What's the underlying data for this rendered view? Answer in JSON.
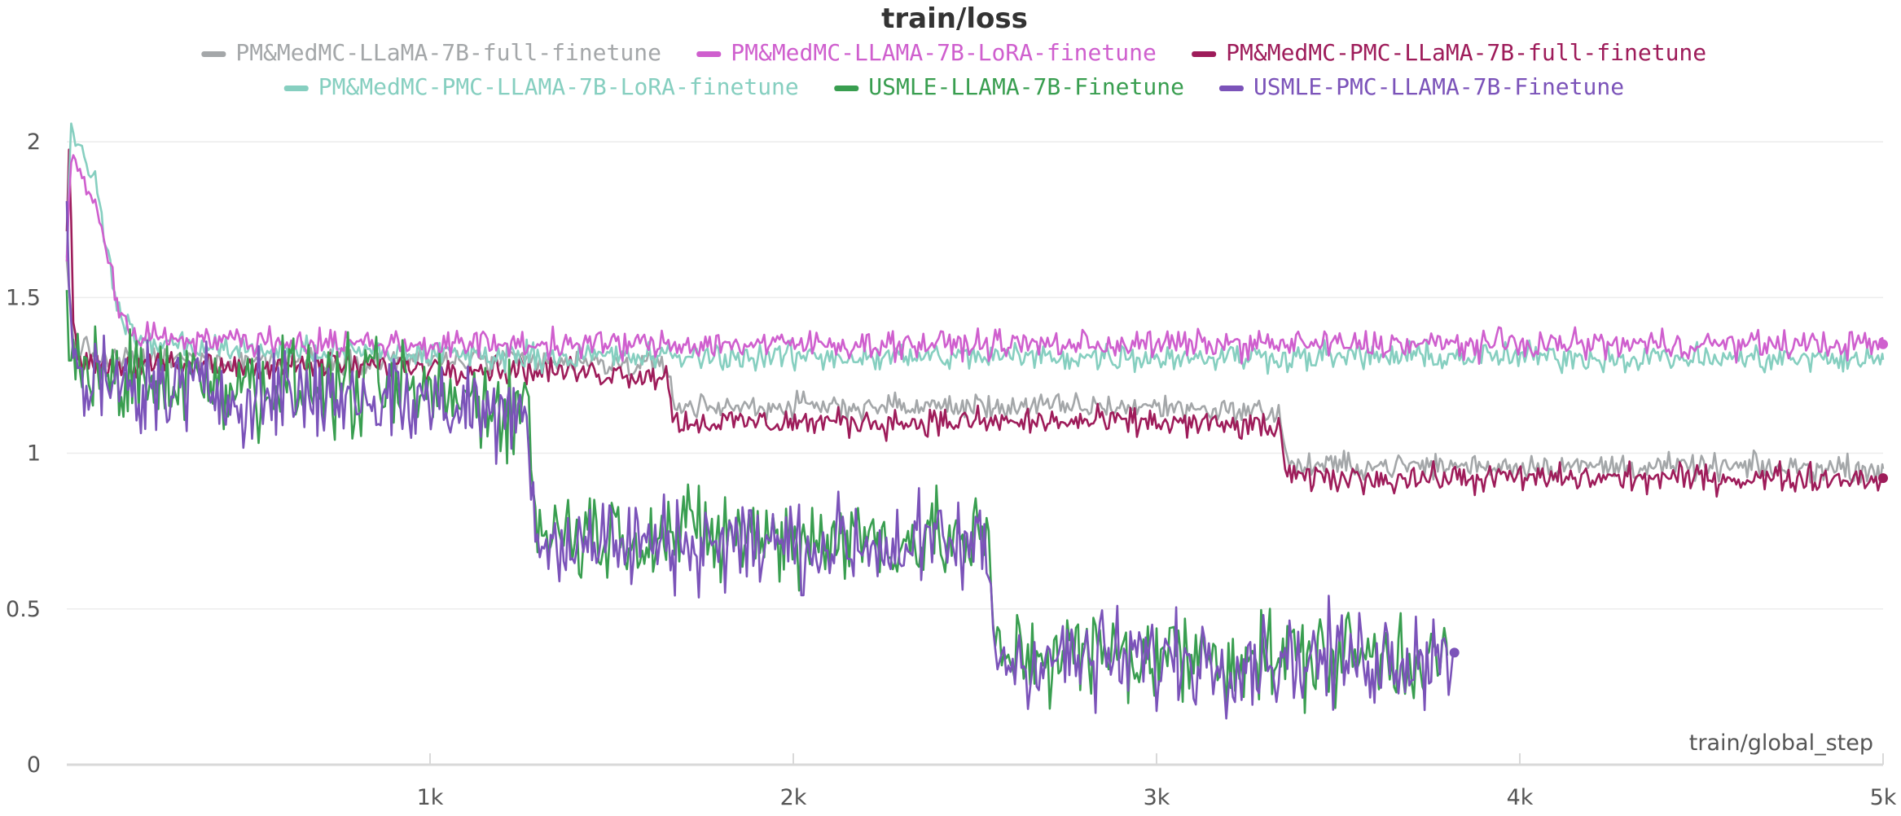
{
  "chart_data": {
    "type": "line",
    "title": "train/loss",
    "xlabel": "train/global_step",
    "ylabel": "",
    "xlim": [
      0,
      5000
    ],
    "ylim": [
      0,
      2.05
    ],
    "x_ticks": [
      1000,
      2000,
      3000,
      4000,
      5000
    ],
    "x_tick_labels": [
      "1k",
      "2k",
      "3k",
      "4k",
      "5k"
    ],
    "y_ticks": [
      0,
      0.5,
      1,
      1.5,
      2
    ],
    "y_tick_labels": [
      "0",
      "0.5",
      "1",
      "1.5",
      "2"
    ],
    "grid": true,
    "legend_position": "top",
    "series": [
      {
        "name": "PM&MedMC-LLaMA-7B-full-finetune",
        "color": "#a4a7a9",
        "end_marker": false,
        "x": [
          0,
          20,
          50,
          100,
          300,
          1000,
          1660,
          1670,
          2000,
          3000,
          3340,
          3360,
          4000,
          5000
        ],
        "y": [
          1.6,
          1.35,
          1.33,
          1.3,
          1.3,
          1.3,
          1.28,
          1.15,
          1.15,
          1.15,
          1.13,
          0.96,
          0.96,
          0.95
        ],
        "noise": 0.02
      },
      {
        "name": "PM&MedMC-LLAMA-7B-LoRA-finetune",
        "color": "#cf5fce",
        "end_marker": true,
        "x": [
          0,
          10,
          40,
          80,
          120,
          150,
          200,
          500,
          1000,
          1500,
          2000,
          3000,
          4000,
          5000
        ],
        "y": [
          1.6,
          1.95,
          1.9,
          1.8,
          1.6,
          1.42,
          1.38,
          1.36,
          1.35,
          1.35,
          1.35,
          1.35,
          1.35,
          1.35
        ],
        "noise": 0.022
      },
      {
        "name": "PM&MedMC-PMC-LLaMA-7B-full-finetune",
        "color": "#9e1c5a",
        "end_marker": true,
        "x": [
          0,
          5,
          20,
          40,
          100,
          300,
          1000,
          1650,
          1660,
          1670,
          2000,
          3000,
          3340,
          3360,
          4000,
          5000
        ],
        "y": [
          1.7,
          2.0,
          1.35,
          1.3,
          1.28,
          1.28,
          1.28,
          1.25,
          1.2,
          1.1,
          1.1,
          1.1,
          1.08,
          0.92,
          0.92,
          0.92
        ],
        "noise": 0.022
      },
      {
        "name": "PM&MedMC-PMC-LLAMA-7B-LoRA-finetune",
        "color": "#86cfc0",
        "end_marker": false,
        "x": [
          0,
          10,
          40,
          80,
          120,
          150,
          200,
          500,
          1000,
          1500,
          2000,
          3000,
          4000,
          5000
        ],
        "y": [
          1.6,
          2.04,
          2.0,
          1.85,
          1.6,
          1.42,
          1.36,
          1.33,
          1.32,
          1.31,
          1.31,
          1.31,
          1.31,
          1.3
        ],
        "noise": 0.022
      },
      {
        "name": "USMLE-LLAMA-7B-Finetune",
        "color": "#399e50",
        "end_marker": false,
        "x": [
          0,
          15,
          40,
          300,
          900,
          1270,
          1280,
          1300,
          2000,
          2530,
          2545,
          2560,
          3000,
          3500,
          3800
        ],
        "y": [
          1.45,
          1.3,
          1.25,
          1.24,
          1.2,
          1.15,
          0.95,
          0.75,
          0.73,
          0.72,
          0.55,
          0.36,
          0.35,
          0.35,
          0.35
        ],
        "noise": 0.075
      },
      {
        "name": "USMLE-PMC-LLAMA-7B-Finetune",
        "color": "#7b53b9",
        "end_marker": true,
        "x": [
          0,
          15,
          40,
          300,
          900,
          1270,
          1280,
          1300,
          2000,
          2530,
          2545,
          2560,
          3000,
          3500,
          3820
        ],
        "y": [
          1.8,
          1.25,
          1.22,
          1.2,
          1.18,
          1.12,
          0.95,
          0.72,
          0.71,
          0.7,
          0.55,
          0.34,
          0.34,
          0.34,
          0.36
        ],
        "noise": 0.075
      }
    ]
  }
}
